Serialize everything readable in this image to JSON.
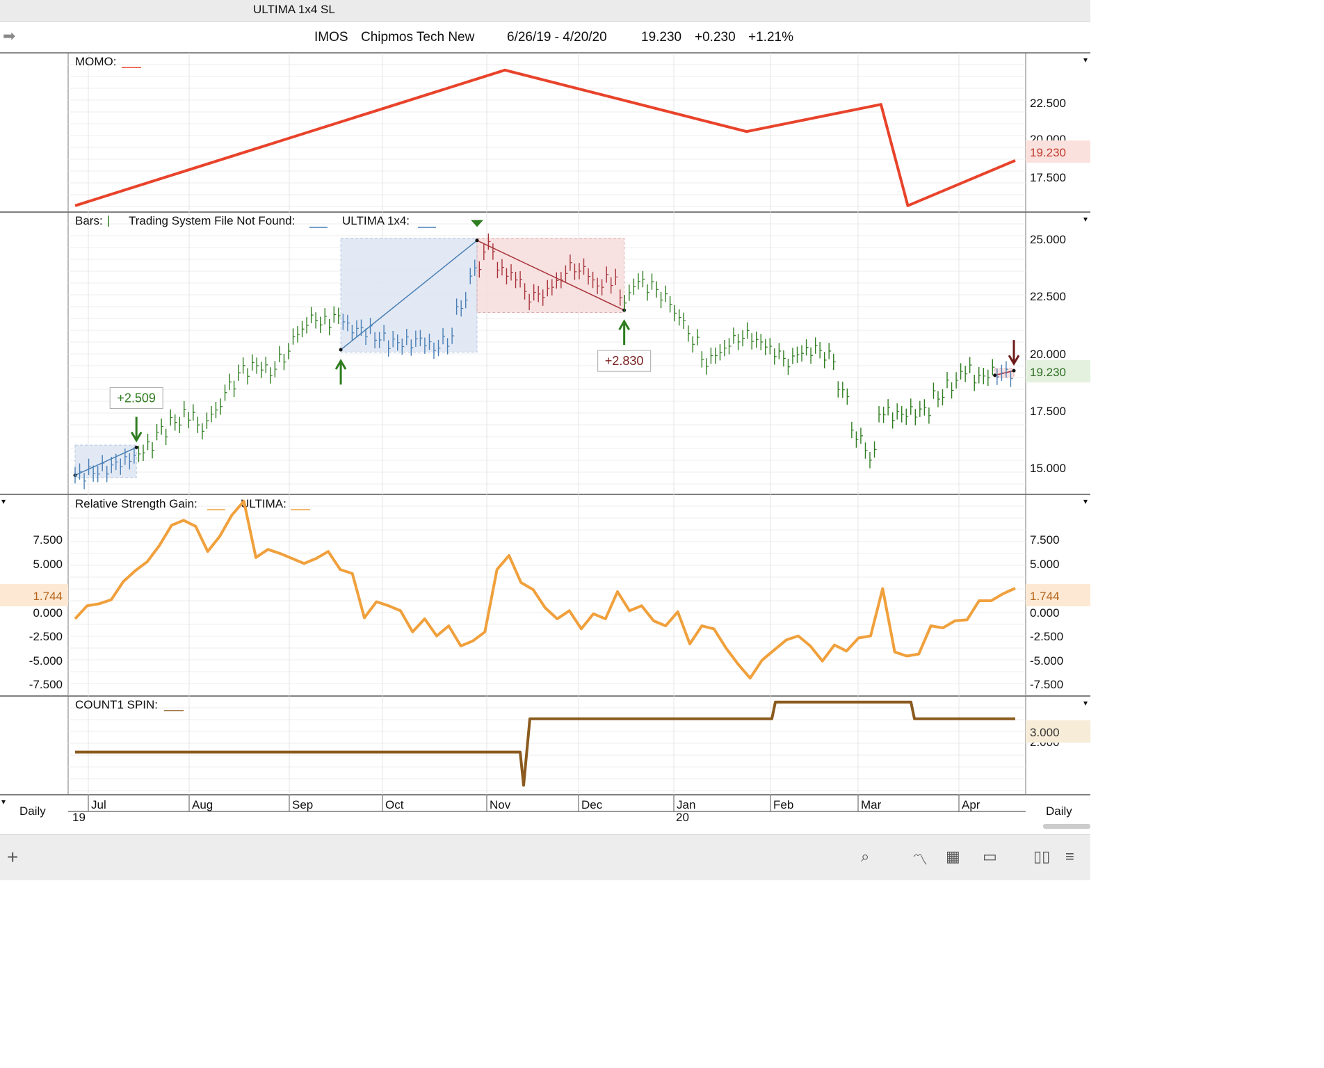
{
  "window": {
    "title": "ULTIMA 1x4 SL"
  },
  "header": {
    "symbol": "IMOS",
    "name": "Chipmos Tech New",
    "range": "6/26/19 - 4/20/20",
    "last": "19.230",
    "change": "+0.230",
    "pct": "+1.21%"
  },
  "colors": {
    "momo": "#e8432b",
    "bar_up": "#2e7d1f",
    "bar_dn": "#2e7d1f",
    "rsg": "#f0a03c",
    "count": "#8b5a1e",
    "long_box": "#dde6f3",
    "short_box": "#f6dcdc",
    "long_line": "#4a7fb5",
    "short_line": "#a8343a",
    "grid": "#e6e6e6"
  },
  "icons": [
    "arrow-right-icon",
    "plus-icon",
    "search-icon",
    "line-chart-icon",
    "grid-icon",
    "panel-icon",
    "book-icon",
    "menu-icon"
  ],
  "footer": {
    "period_left": "Daily",
    "period_right": "Daily"
  },
  "chart_data": [
    {
      "panel": "momo",
      "type": "line",
      "title": "MOMO:",
      "yticks": [
        "22.500",
        "20.000",
        "17.500"
      ],
      "ylim": [
        16.5,
        25.0
      ],
      "last_label": "19.230",
      "series": [
        {
          "name": "MOMO",
          "points": [
            [
              0,
              16.7
            ],
            [
              32,
              24.2
            ],
            [
              50,
              20.8
            ],
            [
              60,
              22.3
            ],
            [
              62,
              16.7
            ],
            [
              70,
              19.2
            ]
          ]
        }
      ]
    },
    {
      "panel": "price",
      "type": "bar",
      "legend": [
        "Bars:",
        "Trading System File Not Found:",
        "ULTIMA 1x4:"
      ],
      "yticks": [
        "25.000",
        "22.500",
        "20.000",
        "17.500",
        "15.000"
      ],
      "ylim": [
        14.0,
        25.9
      ],
      "last_label": "19.230",
      "trades": [
        {
          "entry_x": 0,
          "entry_y": 14.7,
          "exit_x": 4.5,
          "exit_y": 15.9,
          "side": "long",
          "profit_label": "+2.509"
        },
        {
          "entry_x": 19.5,
          "entry_y": 20.1,
          "exit_x": 29.5,
          "exit_y": 24.8,
          "side": "long"
        },
        {
          "entry_x": 29.5,
          "entry_y": 24.8,
          "exit_x": 40.3,
          "exit_y": 21.8,
          "side": "short",
          "profit_label": "+2.830"
        },
        {
          "entry_x": 67.5,
          "entry_y": 19.0,
          "exit_x": 68.9,
          "exit_y": 19.2,
          "side": "short"
        }
      ],
      "closes": [
        [
          0,
          14.7
        ],
        [
          2,
          15.0
        ],
        [
          4,
          15.5
        ],
        [
          5,
          15.9
        ],
        [
          6,
          16.6
        ],
        [
          7,
          17.0
        ],
        [
          8,
          17.3
        ],
        [
          9,
          16.8
        ],
        [
          10,
          17.5
        ],
        [
          11,
          18.5
        ],
        [
          12,
          19.2
        ],
        [
          13,
          19.4
        ],
        [
          14,
          19.2
        ],
        [
          15,
          19.8
        ],
        [
          16,
          20.8
        ],
        [
          17,
          21.4
        ],
        [
          18,
          21.3
        ],
        [
          19,
          21.5
        ],
        [
          20,
          21.0
        ],
        [
          21,
          20.9
        ],
        [
          22,
          20.6
        ],
        [
          23,
          20.4
        ],
        [
          24,
          20.4
        ],
        [
          25,
          20.5
        ],
        [
          26,
          20.2
        ],
        [
          27,
          20.5
        ],
        [
          28,
          22.0
        ],
        [
          29,
          23.5
        ],
        [
          30,
          24.5
        ],
        [
          31,
          23.5
        ],
        [
          32,
          23.2
        ],
        [
          33,
          22.4
        ],
        [
          34,
          22.5
        ],
        [
          35,
          23.0
        ],
        [
          36,
          23.6
        ],
        [
          37,
          23.5
        ],
        [
          38,
          22.9
        ],
        [
          39,
          23.1
        ],
        [
          40,
          22.3
        ],
        [
          41,
          23.0
        ],
        [
          42,
          22.8
        ],
        [
          43,
          22.3
        ],
        [
          44,
          21.5
        ],
        [
          46,
          19.6
        ],
        [
          47,
          20.0
        ],
        [
          48,
          20.5
        ],
        [
          49,
          20.7
        ],
        [
          50,
          20.4
        ],
        [
          51,
          20.0
        ],
        [
          52,
          19.6
        ],
        [
          53,
          20.0
        ],
        [
          54,
          20.1
        ],
        [
          55,
          19.8
        ],
        [
          56,
          18.3
        ],
        [
          57,
          16.4
        ],
        [
          58,
          15.6
        ],
        [
          59,
          17.4
        ],
        [
          60,
          17.3
        ],
        [
          61,
          17.4
        ],
        [
          62,
          17.5
        ],
        [
          63,
          18.1
        ],
        [
          64,
          18.6
        ],
        [
          65,
          19.2
        ],
        [
          66,
          18.9
        ],
        [
          67,
          19.1
        ],
        [
          68,
          19.1
        ],
        [
          69,
          19.23
        ]
      ]
    },
    {
      "panel": "rsg",
      "type": "line",
      "legend": [
        "Relative Strength Gain:",
        "ULTIMA:"
      ],
      "yticks": [
        "7.500",
        "5.000",
        "0.000",
        "-2.500",
        "-5.000",
        "-7.500"
      ],
      "ylim": [
        -8.7,
        10.8
      ],
      "last_label": "1.744",
      "series": [
        {
          "name": "Relative Strength Gain",
          "points": [
            [
              0,
              -1.3
            ],
            [
              1,
              0.0
            ],
            [
              2,
              0.2
            ],
            [
              3,
              0.6
            ],
            [
              4,
              2.4
            ],
            [
              5,
              3.5
            ],
            [
              6,
              4.4
            ],
            [
              7,
              6.0
            ],
            [
              8,
              8.0
            ],
            [
              9,
              8.5
            ],
            [
              10,
              7.9
            ],
            [
              11,
              5.4
            ],
            [
              12,
              6.9
            ],
            [
              13,
              9.0
            ],
            [
              14,
              10.4
            ],
            [
              15,
              4.8
            ],
            [
              16,
              5.6
            ],
            [
              17,
              5.2
            ],
            [
              18,
              4.7
            ],
            [
              19,
              4.2
            ],
            [
              20,
              4.7
            ],
            [
              21,
              5.4
            ],
            [
              22,
              3.6
            ],
            [
              23,
              3.2
            ],
            [
              24,
              -1.2
            ],
            [
              25,
              0.4
            ],
            [
              26,
              0.0
            ],
            [
              27,
              -0.5
            ],
            [
              28,
              -2.6
            ],
            [
              29,
              -1.3
            ],
            [
              30,
              -3.0
            ],
            [
              31,
              -2.0
            ],
            [
              32,
              -4.0
            ],
            [
              33,
              -3.5
            ],
            [
              34,
              -2.6
            ],
            [
              35,
              3.6
            ],
            [
              36,
              5.0
            ],
            [
              37,
              2.3
            ],
            [
              38,
              1.6
            ],
            [
              39,
              -0.2
            ],
            [
              40,
              -1.3
            ],
            [
              41,
              -0.5
            ],
            [
              42,
              -2.3
            ],
            [
              43,
              -0.8
            ],
            [
              44,
              -1.3
            ],
            [
              45,
              1.4
            ],
            [
              46,
              -0.5
            ],
            [
              47,
              0.0
            ],
            [
              48,
              -1.5
            ],
            [
              49,
              -2.0
            ],
            [
              50,
              -0.6
            ],
            [
              51,
              -3.8
            ],
            [
              52,
              -2.0
            ],
            [
              53,
              -2.3
            ],
            [
              54,
              -4.2
            ],
            [
              55,
              -5.8
            ],
            [
              56,
              -7.2
            ],
            [
              57,
              -5.4
            ],
            [
              58,
              -4.4
            ],
            [
              59,
              -3.4
            ],
            [
              60,
              -3.0
            ],
            [
              61,
              -4.0
            ],
            [
              62,
              -5.5
            ],
            [
              63,
              -3.9
            ],
            [
              64,
              -4.5
            ],
            [
              65,
              -3.2
            ],
            [
              66,
              -3.0
            ],
            [
              67,
              1.7
            ],
            [
              68,
              -4.6
            ],
            [
              69,
              -5.0
            ],
            [
              70,
              -4.8
            ],
            [
              71,
              -2.0
            ],
            [
              72,
              -2.2
            ],
            [
              73,
              -1.5
            ],
            [
              74,
              -1.4
            ],
            [
              75,
              0.5
            ],
            [
              76,
              0.5
            ],
            [
              77,
              1.2
            ],
            [
              78,
              1.744
            ]
          ]
        }
      ]
    },
    {
      "panel": "count",
      "type": "line",
      "title": "COUNT1 SPIN:",
      "yticks": [
        "2.000"
      ],
      "ylim": [
        0.8,
        3.6
      ],
      "last_label": "3.000",
      "series": [
        {
          "name": "COUNT1 SPIN",
          "points": [
            [
              0,
              2.0
            ],
            [
              1,
              2.0
            ],
            [
              2,
              1.0
            ],
            [
              3,
              3.0
            ],
            [
              4,
              3.0
            ],
            [
              5,
              3.5
            ],
            [
              6,
              3.5
            ],
            [
              7,
              3.0
            ],
            [
              8,
              3.0
            ]
          ]
        }
      ]
    }
  ],
  "xaxis": {
    "labels": [
      "Jul",
      "Aug",
      "Sep",
      "Oct",
      "Nov",
      "Dec",
      "Jan",
      "Feb",
      "Mar",
      "Apr"
    ],
    "year_labels": [
      "19",
      "20"
    ]
  }
}
